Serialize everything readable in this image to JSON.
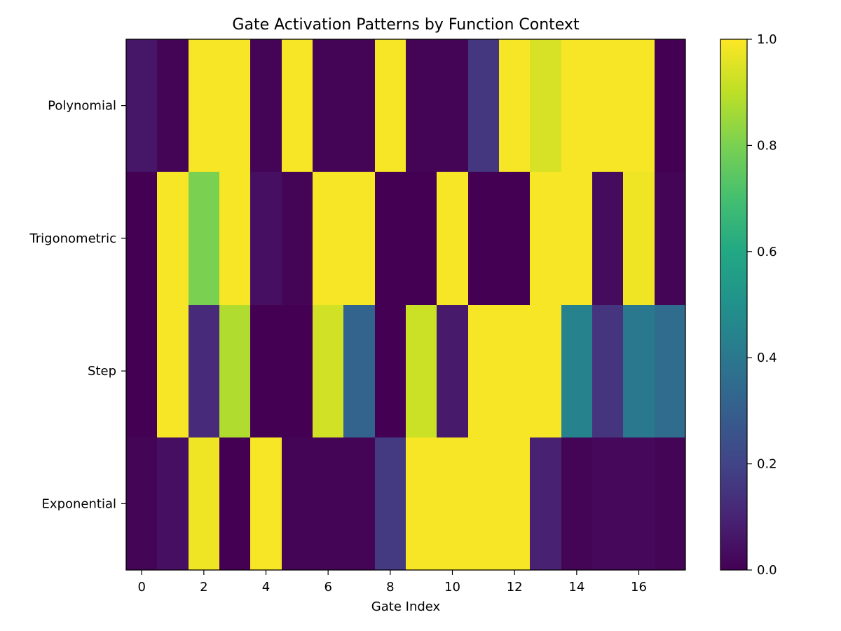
{
  "chart_data": {
    "type": "heatmap",
    "title": "Gate Activation Patterns by Function Context",
    "xlabel": "Gate Index",
    "ylabel": "",
    "rows": [
      "Polynomial",
      "Trigonometric",
      "Step",
      "Exponential"
    ],
    "columns": [
      0,
      1,
      2,
      3,
      4,
      5,
      6,
      7,
      8,
      9,
      10,
      11,
      12,
      13,
      14,
      15,
      16,
      17
    ],
    "x_ticks": [
      0,
      2,
      4,
      6,
      8,
      10,
      12,
      14,
      16
    ],
    "values": [
      [
        0.06,
        0.01,
        0.99,
        0.99,
        0.01,
        0.99,
        0.01,
        0.01,
        0.99,
        0.01,
        0.01,
        0.16,
        0.99,
        0.94,
        0.99,
        0.99,
        0.99,
        0.0
      ],
      [
        0.0,
        0.99,
        0.8,
        0.99,
        0.04,
        0.01,
        0.99,
        0.99,
        0.0,
        0.0,
        0.99,
        0.0,
        0.0,
        0.99,
        0.99,
        0.03,
        0.98,
        0.01
      ],
      [
        0.0,
        0.99,
        0.12,
        0.88,
        0.0,
        0.0,
        0.93,
        0.32,
        0.0,
        0.92,
        0.07,
        0.99,
        0.99,
        0.99,
        0.44,
        0.15,
        0.4,
        0.35
      ],
      [
        0.01,
        0.04,
        0.98,
        0.0,
        0.99,
        0.01,
        0.01,
        0.01,
        0.17,
        0.99,
        0.99,
        0.99,
        0.99,
        0.09,
        0.01,
        0.02,
        0.02,
        0.01
      ]
    ],
    "colormap": "viridis",
    "vmin": 0.0,
    "vmax": 1.0,
    "colorbar_ticks": [
      "0.0",
      "0.2",
      "0.4",
      "0.6",
      "0.8",
      "1.0"
    ],
    "grid": false
  }
}
